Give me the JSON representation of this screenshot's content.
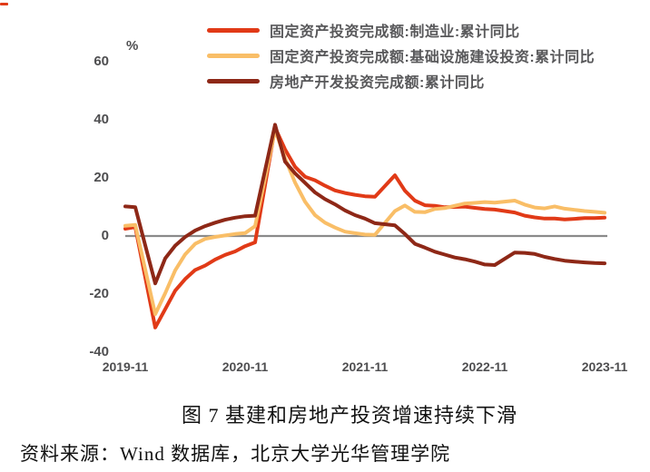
{
  "accent_dash_color": "#E13A17",
  "chart_data": {
    "type": "line",
    "title": "图 7 基建和房地产投资增速持续下滑",
    "source": "资料来源：Wind 数据库，北京大学光华管理学院",
    "unit_label": "%",
    "grid": false,
    "legend_position": "top",
    "ylim": [
      -40,
      65
    ],
    "y_ticks": [
      60,
      40,
      20,
      0,
      -20,
      -40
    ],
    "zero_line_color": "#8a8a8a",
    "x_tick_labels": [
      "2019-11",
      "2020-11",
      "2021-11",
      "2022-11",
      "2023-11"
    ],
    "x_tick_month_index": [
      0,
      12,
      24,
      36,
      48
    ],
    "months": [
      "2019-11",
      "2019-12",
      "2020-01",
      "2020-02",
      "2020-03",
      "2020-04",
      "2020-05",
      "2020-06",
      "2020-07",
      "2020-08",
      "2020-09",
      "2020-10",
      "2020-11",
      "2020-12",
      "2021-01",
      "2021-02",
      "2021-03",
      "2021-04",
      "2021-05",
      "2021-06",
      "2021-07",
      "2021-08",
      "2021-09",
      "2021-10",
      "2021-11",
      "2021-12",
      "2022-01",
      "2022-02",
      "2022-03",
      "2022-04",
      "2022-05",
      "2022-06",
      "2022-07",
      "2022-08",
      "2022-09",
      "2022-10",
      "2022-11",
      "2022-12",
      "2023-01",
      "2023-02",
      "2023-03",
      "2023-04",
      "2023-05",
      "2023-06",
      "2023-07",
      "2023-08",
      "2023-09",
      "2023-10",
      "2023-11"
    ],
    "series": [
      {
        "name": "固定资产投资完成额:制造业:累计同比",
        "color": "#E13A17",
        "values": [
          2.5,
          3.1,
          null,
          -31.5,
          -25.2,
          -18.8,
          -14.8,
          -11.7,
          -10.2,
          -8.1,
          -6.5,
          -5.3,
          -3.5,
          -2.2,
          null,
          37.3,
          29.8,
          23.8,
          20.4,
          19.2,
          17.3,
          15.7,
          14.8,
          14.2,
          13.7,
          13.5,
          null,
          20.9,
          15.6,
          12.2,
          10.6,
          10.4,
          9.9,
          10.0,
          10.1,
          9.7,
          9.3,
          9.1,
          null,
          8.1,
          7.0,
          6.4,
          6.0,
          6.0,
          5.7,
          5.9,
          6.2,
          6.2,
          6.3
        ]
      },
      {
        "name": "固定资产投资完成额:基础设施建设投资:累计同比",
        "color": "#F9BE67",
        "values": [
          3.5,
          3.8,
          null,
          -26.9,
          -19.7,
          -11.8,
          -6.3,
          -2.7,
          -1.0,
          -0.3,
          0.2,
          0.7,
          1.0,
          3.4,
          null,
          36.6,
          26.8,
          18.4,
          11.8,
          7.2,
          4.6,
          2.9,
          1.5,
          1.0,
          0.5,
          0.4,
          null,
          8.6,
          10.5,
          8.3,
          8.2,
          9.3,
          9.6,
          10.4,
          11.2,
          11.4,
          11.7,
          11.5,
          null,
          12.2,
          10.8,
          9.8,
          9.5,
          10.2,
          9.4,
          9.0,
          8.6,
          8.3,
          8.0
        ]
      },
      {
        "name": "房地产开发投资完成额:累计同比",
        "color": "#8E2817",
        "values": [
          10.2,
          9.9,
          null,
          -16.3,
          -7.7,
          -3.3,
          -0.3,
          1.9,
          3.4,
          4.6,
          5.6,
          6.3,
          6.8,
          7.0,
          null,
          38.3,
          25.6,
          21.6,
          18.3,
          15.0,
          12.7,
          10.9,
          8.8,
          7.2,
          6.0,
          4.4,
          null,
          3.7,
          0.7,
          -2.7,
          -4.0,
          -5.4,
          -6.4,
          -7.4,
          -8.0,
          -8.8,
          -9.8,
          -10.0,
          null,
          -5.7,
          -5.8,
          -6.2,
          -7.2,
          -7.9,
          -8.5,
          -8.8,
          -9.1,
          -9.3,
          -9.4
        ]
      }
    ]
  }
}
